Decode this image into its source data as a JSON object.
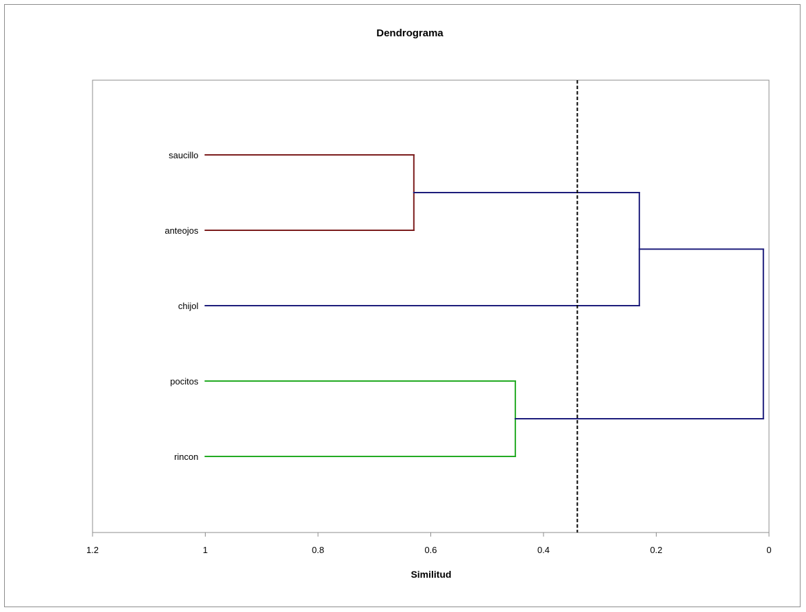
{
  "chart_data": {
    "type": "dendrogram",
    "title": "Dendrograma",
    "xlabel": "Similitud",
    "ylabel": "",
    "xlim": [
      1.2,
      0
    ],
    "x_ticks": [
      "1.2",
      "1",
      "0.8",
      "0.6",
      "0.4",
      "0.2",
      "0"
    ],
    "x_reversed": true,
    "grid": false,
    "legend": "none",
    "leaves": [
      "saucillo",
      "anteojos",
      "chijol",
      "pocitos",
      "rincon"
    ],
    "leaf_similarity": 1.0,
    "merges": [
      {
        "members": [
          "saucillo",
          "anteojos"
        ],
        "similarity": 0.63,
        "color": "#7b1c1c"
      },
      {
        "members": [
          "pocitos",
          "rincon"
        ],
        "similarity": 0.45,
        "color": "#22aa22"
      },
      {
        "members": [
          "saucillo",
          "anteojos",
          "chijol"
        ],
        "similarity": 0.23,
        "color": "#1c1c7b"
      },
      {
        "members": [
          "saucillo",
          "anteojos",
          "chijol",
          "pocitos",
          "rincon"
        ],
        "similarity": 0.01,
        "color": "#1c1c7b"
      }
    ],
    "cutoff_line": {
      "similarity": 0.34,
      "style": "dashed",
      "color": "#000000"
    }
  }
}
